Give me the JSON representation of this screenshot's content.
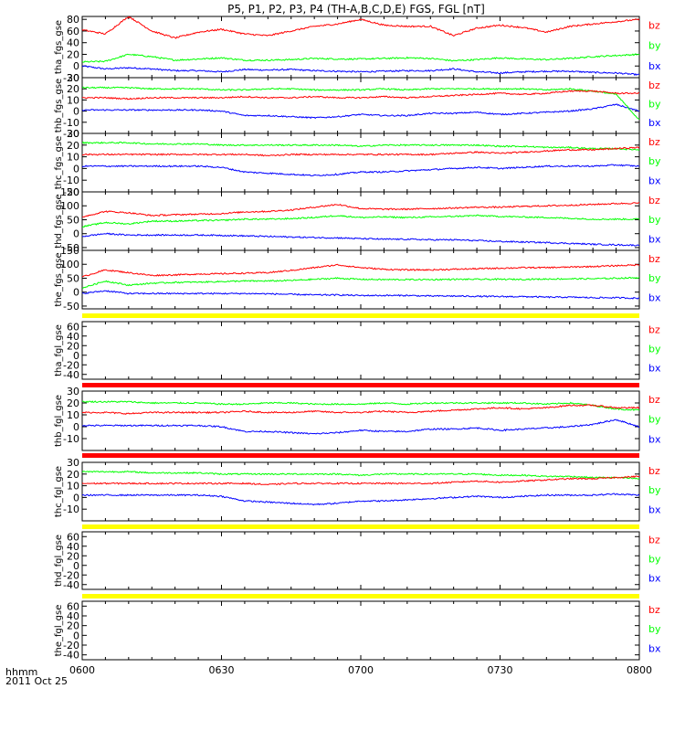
{
  "title": "P5, P1, P2, P3, P4 (TH-A,B,C,D,E) FGS, FGL [nT]",
  "footer": {
    "label1": "hhmm",
    "label2": "2011 Oct 25"
  },
  "colors": {
    "bx": "#0000ff",
    "by": "#00ff00",
    "bz": "#ff0000",
    "bar_yellow": "#ffff00",
    "bar_red": "#ff0000"
  },
  "x_ticks": [
    "0600",
    "0630",
    "0700",
    "0730",
    "0800"
  ],
  "chart_data": [
    {
      "type": "line",
      "ylabel": "tha_fgs_gse",
      "ylim": [
        -20,
        85
      ],
      "yticks": [
        -20,
        0,
        20,
        40,
        60,
        80
      ],
      "x": [
        "06:00",
        "06:05",
        "06:10",
        "06:15",
        "06:20",
        "06:25",
        "06:30",
        "06:35",
        "06:40",
        "06:45",
        "06:50",
        "06:55",
        "07:00",
        "07:05",
        "07:10",
        "07:15",
        "07:20",
        "07:25",
        "07:30",
        "07:35",
        "07:40",
        "07:45",
        "07:50",
        "07:55",
        "08:00"
      ],
      "series": [
        {
          "name": "bz",
          "values": [
            62,
            55,
            85,
            60,
            48,
            58,
            63,
            55,
            52,
            60,
            68,
            72,
            80,
            70,
            68,
            68,
            52,
            65,
            70,
            66,
            58,
            68,
            72,
            76,
            80
          ]
        },
        {
          "name": "by",
          "values": [
            7,
            8,
            20,
            16,
            10,
            12,
            14,
            10,
            10,
            11,
            13,
            12,
            12,
            13,
            14,
            13,
            9,
            11,
            14,
            12,
            11,
            13,
            16,
            18,
            20
          ]
        },
        {
          "name": "bx",
          "values": [
            0,
            -5,
            -3,
            -5,
            -8,
            -8,
            -10,
            -6,
            -7,
            -6,
            -8,
            -9,
            -10,
            -9,
            -8,
            -8,
            -5,
            -10,
            -12,
            -10,
            -9,
            -9,
            -11,
            -12,
            -15
          ]
        }
      ]
    },
    {
      "type": "line",
      "ylabel": "thb_fgs_gse",
      "ylim": [
        -20,
        30
      ],
      "yticks": [
        -20,
        -10,
        0,
        10,
        20,
        30
      ],
      "x": [
        "06:00",
        "06:05",
        "06:10",
        "06:15",
        "06:20",
        "06:25",
        "06:30",
        "06:35",
        "06:40",
        "06:45",
        "06:50",
        "06:55",
        "07:00",
        "07:05",
        "07:10",
        "07:15",
        "07:20",
        "07:25",
        "07:30",
        "07:35",
        "07:40",
        "07:45",
        "07:50",
        "07:55",
        "08:00"
      ],
      "series": [
        {
          "name": "bz",
          "values": [
            12,
            12,
            11,
            12,
            12,
            12,
            12,
            13,
            12,
            12,
            13,
            12,
            12,
            13,
            12,
            13,
            14,
            15,
            16,
            15,
            16,
            18,
            18,
            16,
            16
          ]
        },
        {
          "name": "by",
          "values": [
            21,
            21,
            21,
            20,
            20,
            20,
            19,
            19,
            20,
            20,
            19,
            19,
            19,
            20,
            19,
            20,
            20,
            20,
            20,
            20,
            19,
            20,
            18,
            15,
            -8
          ]
        },
        {
          "name": "bx",
          "values": [
            1,
            1,
            1,
            1,
            1,
            1,
            0,
            -4,
            -4,
            -5,
            -6,
            -5,
            -3,
            -4,
            -4,
            -2,
            -2,
            -1,
            -3,
            -2,
            -1,
            0,
            2,
            6,
            0
          ]
        }
      ]
    },
    {
      "type": "line",
      "ylabel": "thc_fgs_gse",
      "ylim": [
        -20,
        30
      ],
      "yticks": [
        -20,
        -10,
        0,
        10,
        20,
        30
      ],
      "x": [
        "06:00",
        "06:05",
        "06:10",
        "06:15",
        "06:20",
        "06:25",
        "06:30",
        "06:35",
        "06:40",
        "06:45",
        "06:50",
        "06:55",
        "07:00",
        "07:05",
        "07:10",
        "07:15",
        "07:20",
        "07:25",
        "07:30",
        "07:35",
        "07:40",
        "07:45",
        "07:50",
        "07:55",
        "08:00"
      ],
      "series": [
        {
          "name": "bz",
          "values": [
            12,
            12,
            12,
            12,
            12,
            12,
            12,
            12,
            11,
            12,
            12,
            12,
            12,
            12,
            12,
            12,
            13,
            14,
            13,
            14,
            15,
            16,
            16,
            17,
            18
          ]
        },
        {
          "name": "by",
          "values": [
            22,
            22,
            22,
            21,
            21,
            21,
            20,
            20,
            20,
            20,
            20,
            20,
            19,
            20,
            20,
            20,
            20,
            20,
            19,
            19,
            18,
            18,
            17,
            17,
            16
          ]
        },
        {
          "name": "bx",
          "values": [
            2,
            2,
            2,
            2,
            2,
            2,
            1,
            -3,
            -4,
            -5,
            -6,
            -5,
            -3,
            -3,
            -2,
            -1,
            0,
            1,
            0,
            1,
            2,
            2,
            2,
            3,
            2
          ]
        }
      ]
    },
    {
      "type": "line",
      "ylabel": "thd_fgs_gse",
      "ylim": [
        -60,
        150
      ],
      "yticks": [
        -50,
        0,
        50,
        100,
        150
      ],
      "x": [
        "06:00",
        "06:05",
        "06:10",
        "06:15",
        "06:20",
        "06:25",
        "06:30",
        "06:35",
        "06:40",
        "06:45",
        "06:50",
        "06:55",
        "07:00",
        "07:05",
        "07:10",
        "07:15",
        "07:20",
        "07:25",
        "07:30",
        "07:35",
        "07:40",
        "07:45",
        "07:50",
        "07:55",
        "08:00"
      ],
      "series": [
        {
          "name": "bz",
          "values": [
            60,
            80,
            75,
            65,
            68,
            70,
            72,
            78,
            80,
            85,
            95,
            105,
            90,
            88,
            88,
            90,
            92,
            95,
            95,
            98,
            100,
            102,
            105,
            108,
            110
          ]
        },
        {
          "name": "by",
          "values": [
            25,
            40,
            35,
            45,
            45,
            47,
            48,
            52,
            52,
            54,
            58,
            65,
            58,
            60,
            58,
            60,
            62,
            65,
            62,
            60,
            58,
            55,
            52,
            52,
            52
          ]
        },
        {
          "name": "bx",
          "values": [
            -10,
            0,
            -5,
            -5,
            -5,
            -5,
            -6,
            -8,
            -10,
            -12,
            -14,
            -15,
            -18,
            -20,
            -20,
            -22,
            -22,
            -25,
            -28,
            -30,
            -32,
            -35,
            -38,
            -40,
            -42
          ]
        }
      ]
    },
    {
      "type": "line",
      "ylabel": "the_fgs_gse",
      "ylim": [
        -60,
        150
      ],
      "yticks": [
        -50,
        0,
        50,
        100,
        150
      ],
      "x": [
        "06:00",
        "06:05",
        "06:10",
        "06:15",
        "06:20",
        "06:25",
        "06:30",
        "06:35",
        "06:40",
        "06:45",
        "06:50",
        "06:55",
        "07:00",
        "07:05",
        "07:10",
        "07:15",
        "07:20",
        "07:25",
        "07:30",
        "07:35",
        "07:40",
        "07:45",
        "07:50",
        "07:55",
        "08:00"
      ],
      "series": [
        {
          "name": "bz",
          "values": [
            55,
            80,
            70,
            60,
            62,
            65,
            66,
            68,
            70,
            78,
            88,
            98,
            88,
            82,
            80,
            80,
            82,
            84,
            86,
            88,
            88,
            90,
            92,
            95,
            98
          ]
        },
        {
          "name": "by",
          "values": [
            15,
            40,
            25,
            32,
            35,
            36,
            38,
            40,
            40,
            42,
            46,
            50,
            46,
            45,
            45,
            45,
            46,
            46,
            46,
            46,
            47,
            48,
            48,
            50,
            52
          ]
        },
        {
          "name": "bx",
          "values": [
            -5,
            5,
            -5,
            -5,
            -5,
            -5,
            -5,
            -5,
            -6,
            -8,
            -10,
            -10,
            -12,
            -12,
            -12,
            -14,
            -14,
            -15,
            -16,
            -16,
            -18,
            -18,
            -20,
            -20,
            -22
          ]
        }
      ]
    },
    {
      "type": "line",
      "ylabel": "tha_fgl_gse",
      "ylim": [
        -50,
        70
      ],
      "yticks": [
        -40,
        -20,
        0,
        20,
        40,
        60
      ],
      "x": [],
      "series": [
        {
          "name": "bz",
          "values": []
        },
        {
          "name": "by",
          "values": []
        },
        {
          "name": "bx",
          "values": []
        }
      ]
    },
    {
      "type": "line",
      "ylabel": "thb_fgl_gse",
      "ylim": [
        -20,
        30
      ],
      "yticks": [
        -10,
        0,
        10,
        20,
        30
      ],
      "x": [
        "06:00",
        "06:05",
        "06:10",
        "06:15",
        "06:20",
        "06:25",
        "06:30",
        "06:35",
        "06:40",
        "06:45",
        "06:50",
        "06:55",
        "07:00",
        "07:05",
        "07:10",
        "07:15",
        "07:20",
        "07:25",
        "07:30",
        "07:35",
        "07:40",
        "07:45",
        "07:50",
        "07:55",
        "08:00"
      ],
      "series": [
        {
          "name": "bz",
          "values": [
            12,
            12,
            11,
            12,
            12,
            12,
            12,
            13,
            12,
            12,
            13,
            12,
            12,
            13,
            12,
            13,
            14,
            15,
            16,
            15,
            16,
            18,
            18,
            16,
            16
          ]
        },
        {
          "name": "by",
          "values": [
            21,
            21,
            21,
            20,
            20,
            20,
            19,
            19,
            20,
            20,
            19,
            19,
            19,
            20,
            19,
            20,
            20,
            20,
            20,
            20,
            19,
            20,
            18,
            15,
            14
          ]
        },
        {
          "name": "bx",
          "values": [
            1,
            1,
            1,
            1,
            1,
            1,
            0,
            -4,
            -4,
            -5,
            -6,
            -5,
            -3,
            -4,
            -4,
            -2,
            -2,
            -1,
            -3,
            -2,
            -1,
            0,
            2,
            6,
            0
          ]
        }
      ]
    },
    {
      "type": "line",
      "ylabel": "thc_fgl_gse",
      "ylim": [
        -20,
        30
      ],
      "yticks": [
        -10,
        0,
        10,
        20,
        30
      ],
      "x": [
        "06:00",
        "06:05",
        "06:10",
        "06:15",
        "06:20",
        "06:25",
        "06:30",
        "06:35",
        "06:40",
        "06:45",
        "06:50",
        "06:55",
        "07:00",
        "07:05",
        "07:10",
        "07:15",
        "07:20",
        "07:25",
        "07:30",
        "07:35",
        "07:40",
        "07:45",
        "07:50",
        "07:55",
        "08:00"
      ],
      "series": [
        {
          "name": "bz",
          "values": [
            12,
            12,
            12,
            12,
            12,
            12,
            12,
            12,
            11,
            12,
            12,
            12,
            12,
            12,
            12,
            12,
            13,
            14,
            13,
            14,
            15,
            16,
            16,
            17,
            18
          ]
        },
        {
          "name": "by",
          "values": [
            22,
            22,
            22,
            21,
            21,
            21,
            20,
            20,
            20,
            20,
            20,
            20,
            19,
            20,
            20,
            20,
            20,
            20,
            19,
            19,
            18,
            18,
            17,
            17,
            16
          ]
        },
        {
          "name": "bx",
          "values": [
            2,
            2,
            2,
            2,
            2,
            2,
            1,
            -3,
            -4,
            -5,
            -6,
            -5,
            -3,
            -3,
            -2,
            -1,
            0,
            1,
            0,
            1,
            2,
            2,
            2,
            3,
            2
          ]
        }
      ]
    },
    {
      "type": "line",
      "ylabel": "thd_fgl_gse",
      "ylim": [
        -50,
        70
      ],
      "yticks": [
        -40,
        -20,
        0,
        20,
        40,
        60
      ],
      "x": [],
      "series": [
        {
          "name": "bz",
          "values": []
        },
        {
          "name": "by",
          "values": []
        },
        {
          "name": "bx",
          "values": []
        }
      ]
    },
    {
      "type": "line",
      "ylabel": "the_fgl_gse",
      "ylim": [
        -50,
        70
      ],
      "yticks": [
        -40,
        -20,
        0,
        20,
        40,
        60
      ],
      "x": [],
      "series": [
        {
          "name": "bz",
          "values": []
        },
        {
          "name": "by",
          "values": []
        },
        {
          "name": "bx",
          "values": []
        }
      ]
    }
  ]
}
